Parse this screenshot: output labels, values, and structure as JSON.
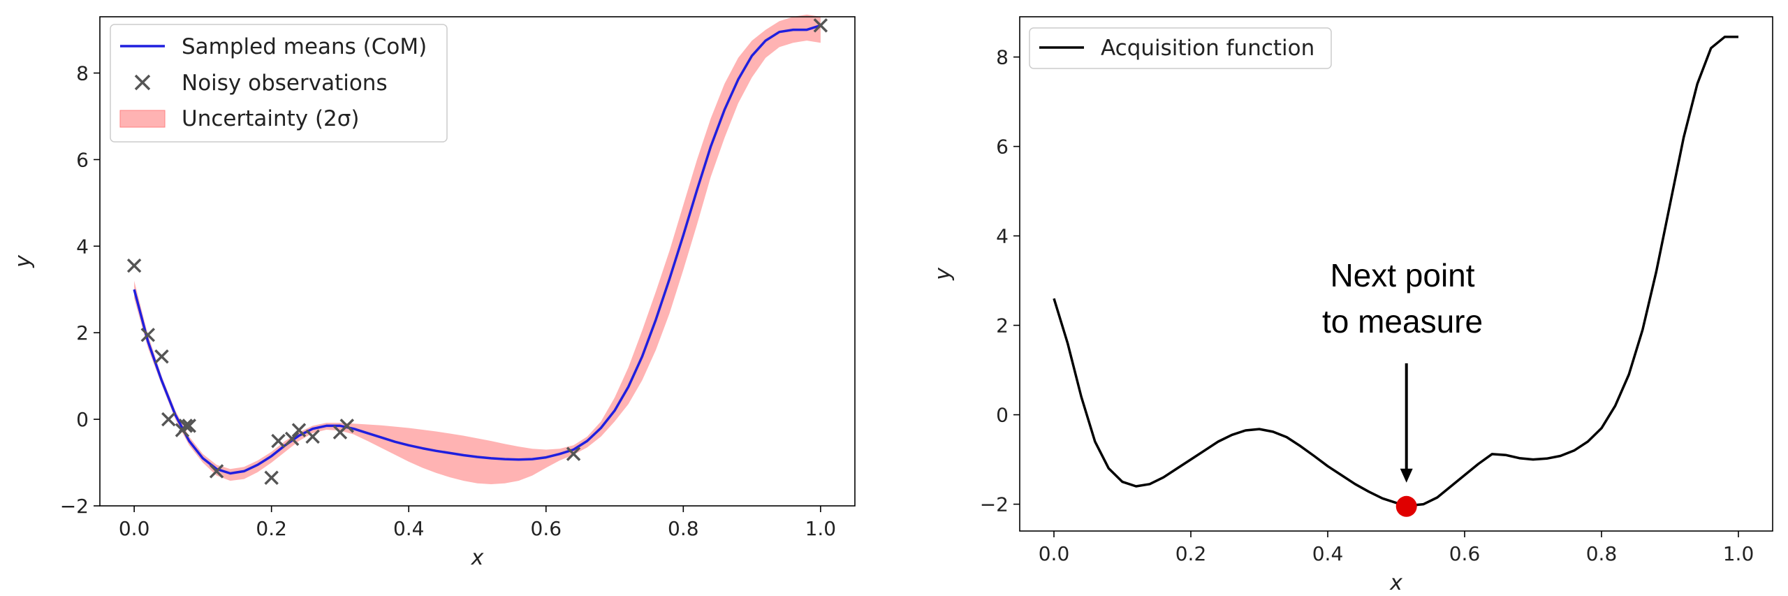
{
  "chart_data": [
    {
      "type": "line",
      "xlabel": "x",
      "ylabel": "y",
      "xlim": [
        -0.05,
        1.05
      ],
      "ylim": [
        -2.0,
        9.3
      ],
      "xticks": [
        0.0,
        0.2,
        0.4,
        0.6,
        0.8,
        1.0
      ],
      "xtick_labels": [
        "0.0",
        "0.2",
        "0.4",
        "0.6",
        "0.8",
        "1.0"
      ],
      "yticks": [
        -2,
        0,
        2,
        4,
        6,
        8
      ],
      "ytick_labels": [
        "−2",
        "0",
        "2",
        "4",
        "6",
        "8"
      ],
      "legend_position": "top-left",
      "colors": {
        "mean": "#1f1fde",
        "observations": "#555555",
        "band": "#ff9a9a"
      },
      "legend": [
        {
          "label": "Sampled means (CoM)",
          "kind": "line"
        },
        {
          "label": "Noisy observations",
          "kind": "marker"
        },
        {
          "label": "Uncertainty (2σ)",
          "kind": "patch"
        }
      ],
      "mean": {
        "x": [
          0.0,
          0.02,
          0.04,
          0.06,
          0.08,
          0.1,
          0.12,
          0.14,
          0.16,
          0.18,
          0.2,
          0.22,
          0.24,
          0.26,
          0.28,
          0.3,
          0.32,
          0.34,
          0.36,
          0.38,
          0.4,
          0.42,
          0.44,
          0.46,
          0.48,
          0.5,
          0.52,
          0.54,
          0.56,
          0.58,
          0.6,
          0.62,
          0.64,
          0.66,
          0.68,
          0.7,
          0.72,
          0.74,
          0.76,
          0.78,
          0.8,
          0.82,
          0.84,
          0.86,
          0.88,
          0.9,
          0.92,
          0.94,
          0.96,
          0.98,
          1.0
        ],
        "y": [
          3.0,
          1.8,
          0.9,
          0.1,
          -0.5,
          -0.9,
          -1.15,
          -1.25,
          -1.2,
          -1.05,
          -0.85,
          -0.6,
          -0.38,
          -0.22,
          -0.15,
          -0.15,
          -0.22,
          -0.32,
          -0.42,
          -0.52,
          -0.6,
          -0.67,
          -0.73,
          -0.78,
          -0.83,
          -0.87,
          -0.9,
          -0.92,
          -0.93,
          -0.92,
          -0.88,
          -0.8,
          -0.7,
          -0.5,
          -0.2,
          0.2,
          0.75,
          1.45,
          2.3,
          3.25,
          4.25,
          5.3,
          6.3,
          7.15,
          7.85,
          8.4,
          8.75,
          8.95,
          9.0,
          9.0,
          9.1
        ]
      },
      "band": {
        "upper": [
          3.2,
          1.95,
          1.0,
          0.2,
          -0.4,
          -0.8,
          -1.05,
          -1.15,
          -1.1,
          -0.95,
          -0.75,
          -0.5,
          -0.3,
          -0.15,
          -0.08,
          -0.08,
          -0.1,
          -0.12,
          -0.14,
          -0.17,
          -0.2,
          -0.24,
          -0.28,
          -0.33,
          -0.38,
          -0.44,
          -0.5,
          -0.57,
          -0.63,
          -0.68,
          -0.7,
          -0.68,
          -0.6,
          -0.4,
          -0.05,
          0.5,
          1.2,
          2.05,
          2.95,
          3.9,
          4.95,
          6.0,
          6.95,
          7.75,
          8.35,
          8.75,
          9.0,
          9.2,
          9.3,
          9.35,
          9.3
        ],
        "lower": [
          2.8,
          1.65,
          0.8,
          0.0,
          -0.6,
          -1.0,
          -1.3,
          -1.42,
          -1.38,
          -1.22,
          -1.0,
          -0.75,
          -0.5,
          -0.32,
          -0.24,
          -0.26,
          -0.35,
          -0.5,
          -0.66,
          -0.82,
          -0.98,
          -1.12,
          -1.24,
          -1.34,
          -1.42,
          -1.48,
          -1.5,
          -1.48,
          -1.42,
          -1.3,
          -1.12,
          -0.95,
          -0.82,
          -0.65,
          -0.4,
          -0.05,
          0.35,
          0.9,
          1.6,
          2.45,
          3.45,
          4.5,
          5.6,
          6.5,
          7.3,
          7.9,
          8.35,
          8.6,
          8.7,
          8.75,
          8.7
        ]
      },
      "observations": {
        "x": [
          0.0,
          0.02,
          0.04,
          0.05,
          0.07,
          0.075,
          0.08,
          0.12,
          0.2,
          0.21,
          0.23,
          0.24,
          0.26,
          0.3,
          0.31,
          0.64,
          1.0
        ],
        "y": [
          3.55,
          1.95,
          1.45,
          0.0,
          -0.25,
          -0.15,
          -0.15,
          -1.2,
          -1.35,
          -0.5,
          -0.45,
          -0.25,
          -0.4,
          -0.3,
          -0.15,
          -0.8,
          9.1
        ]
      }
    },
    {
      "type": "line",
      "xlabel": "x",
      "ylabel": "y",
      "xlim": [
        -0.05,
        1.05
      ],
      "ylim": [
        -2.6,
        8.9
      ],
      "xticks": [
        0.0,
        0.2,
        0.4,
        0.6,
        0.8,
        1.0
      ],
      "xtick_labels": [
        "0.0",
        "0.2",
        "0.4",
        "0.6",
        "0.8",
        "1.0"
      ],
      "yticks": [
        -2,
        0,
        2,
        4,
        6,
        8
      ],
      "ytick_labels": [
        "−2",
        "0",
        "2",
        "4",
        "6",
        "8"
      ],
      "legend_position": "top-left",
      "colors": {
        "line": "#000000",
        "marker": "#e00000"
      },
      "legend": [
        {
          "label": "Acquisition function",
          "kind": "line"
        }
      ],
      "acquisition": {
        "x": [
          0.0,
          0.02,
          0.04,
          0.06,
          0.08,
          0.1,
          0.12,
          0.14,
          0.16,
          0.18,
          0.2,
          0.22,
          0.24,
          0.26,
          0.28,
          0.3,
          0.32,
          0.34,
          0.36,
          0.38,
          0.4,
          0.42,
          0.44,
          0.46,
          0.48,
          0.5,
          0.52,
          0.54,
          0.56,
          0.58,
          0.6,
          0.62,
          0.64,
          0.66,
          0.68,
          0.7,
          0.72,
          0.74,
          0.76,
          0.78,
          0.8,
          0.82,
          0.84,
          0.86,
          0.88,
          0.9,
          0.92,
          0.94,
          0.96,
          0.98,
          1.0
        ],
        "y": [
          2.6,
          1.6,
          0.4,
          -0.6,
          -1.2,
          -1.5,
          -1.6,
          -1.55,
          -1.4,
          -1.2,
          -1.0,
          -0.8,
          -0.6,
          -0.45,
          -0.35,
          -0.32,
          -0.38,
          -0.5,
          -0.7,
          -0.92,
          -1.15,
          -1.35,
          -1.55,
          -1.72,
          -1.87,
          -1.97,
          -2.03,
          -2.0,
          -1.85,
          -1.6,
          -1.35,
          -1.1,
          -0.88,
          -0.9,
          -0.97,
          -1.0,
          -0.98,
          -0.92,
          -0.8,
          -0.6,
          -0.3,
          0.2,
          0.9,
          1.9,
          3.2,
          4.7,
          6.2,
          7.4,
          8.2,
          8.45,
          8.45
        ]
      },
      "next_point": {
        "x": 0.515,
        "y": -2.05
      },
      "annotation": {
        "line1": "Next point",
        "line2": "to measure"
      }
    }
  ]
}
